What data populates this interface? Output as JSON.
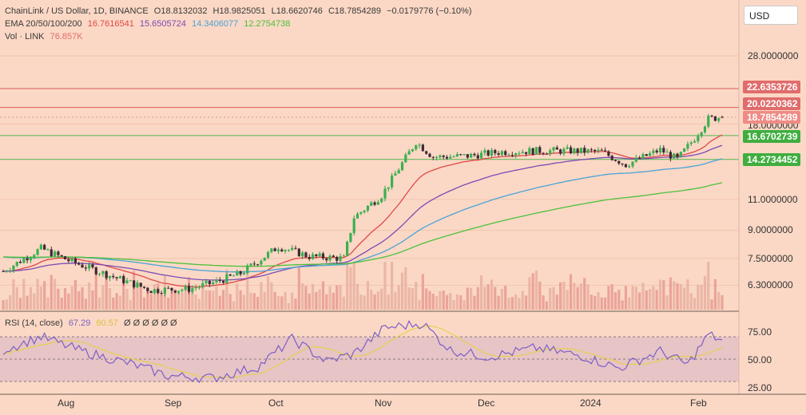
{
  "legend": {
    "symbol_line": "ChainLink / US Dollar, 1D, BINANCE",
    "o": "O18.8132032",
    "h": "H18.9825051",
    "l": "L18.6620746",
    "c": "C18.7854289",
    "chg": "−0.0179776 (−0.10%)",
    "ema_label": "EMA 20/50/100/200",
    "ema20": "16.7616541",
    "ema50": "15.6505724",
    "ema100": "14.3406077",
    "ema200": "12.2754738",
    "vol_label": "Vol · LINK",
    "vol_value": "76.857K",
    "rsi_label": "RSI (14, close)",
    "rsi_value": "67.29",
    "rsi_ma_value": "60.57",
    "rsi_extras": "Ø Ø Ø Ø Ø Ø"
  },
  "currency_button": "USD",
  "price_axis": {
    "ticks": [
      "28.0000000",
      "18.0000000",
      "11.0000000",
      "9.0000000",
      "7.5000000",
      "6.3000000"
    ],
    "badges": [
      {
        "label": "22.6353726",
        "color": "#e06c6c"
      },
      {
        "label": "20.0220362",
        "color": "#e06c6c"
      },
      {
        "label": "18.7854289",
        "color": "#ef8b86"
      },
      {
        "label": "16.6702739",
        "color": "#3fae3f"
      },
      {
        "label": "14.2734452",
        "color": "#3fae3f"
      }
    ]
  },
  "rsi_axis": {
    "ticks": [
      "75.00",
      "50.00",
      "25.00"
    ]
  },
  "x_axis": {
    "ticks": [
      "Aug",
      "Sep",
      "Oct",
      "Nov",
      "Dec",
      "2024",
      "Feb"
    ]
  },
  "colors": {
    "background": "#fbd8c5",
    "up": "#2e9d48",
    "down": "#4a2c3c",
    "ema20": "#e04848",
    "ema50": "#7b4bb5",
    "ema100": "#4aa3d8",
    "ema200": "#4cc13c",
    "resistance": "#d75a5a",
    "support": "#52b552",
    "rsi": "#7c5fc6",
    "rsi_ma": "#e3d14e",
    "volume": "#e9a9a0"
  },
  "chart_data": {
    "type": "candlestick",
    "x_axis_ticks": [
      "Aug",
      "Sep",
      "Oct",
      "Nov",
      "Dec",
      "2024",
      "Feb"
    ],
    "y_scale": "log",
    "horizontal_levels": [
      22.6353726,
      20.0220362,
      16.6702739,
      14.2734452
    ],
    "last_price": 18.7854289,
    "ohlc_last": {
      "open": 18.8132032,
      "high": 18.9825051,
      "low": 18.6620746,
      "close": 18.7854289
    },
    "close_path": {
      "x": [
        "2023-07-13",
        "2023-07-24",
        "2023-08-01",
        "2023-08-15",
        "2023-08-25",
        "2023-09-05",
        "2023-09-12",
        "2023-09-20",
        "2023-10-01",
        "2023-10-10",
        "2023-10-20",
        "2023-10-23",
        "2023-10-31",
        "2023-11-10",
        "2023-11-15",
        "2023-11-25",
        "2023-12-05",
        "2023-12-15",
        "2023-12-25",
        "2024-01-03",
        "2024-01-10",
        "2024-01-20",
        "2024-01-25",
        "2024-01-30",
        "2024-02-03",
        "2024-02-07"
      ],
      "close": [
        6.9,
        8.0,
        7.4,
        6.6,
        6.1,
        6.15,
        6.4,
        6.8,
        8.1,
        7.6,
        7.5,
        9.8,
        11.3,
        16.0,
        14.5,
        14.6,
        15.0,
        15.1,
        15.1,
        15.0,
        13.8,
        15.2,
        14.3,
        16.4,
        18.6,
        18.8
      ]
    },
    "ema": {
      "20": 16.7616541,
      "50": 15.6505724,
      "100": 14.3406077,
      "200": 12.2754738
    },
    "volume_last": "76.857K",
    "rsi": {
      "period": 14,
      "last": 67.29,
      "ma_last": 60.57,
      "levels": [
        70,
        50,
        30
      ],
      "x": [
        "2023-07-13",
        "2023-07-24",
        "2023-08-05",
        "2023-08-20",
        "2023-08-30",
        "2023-09-12",
        "2023-09-25",
        "2023-10-05",
        "2023-10-15",
        "2023-10-23",
        "2023-11-01",
        "2023-11-12",
        "2023-11-20",
        "2023-12-01",
        "2023-12-15",
        "2023-12-28",
        "2024-01-08",
        "2024-01-20",
        "2024-01-28",
        "2024-02-03",
        "2024-02-07"
      ],
      "values": [
        58,
        70,
        57,
        45,
        35,
        33,
        43,
        68,
        48,
        55,
        78,
        82,
        58,
        52,
        60,
        53,
        42,
        57,
        45,
        72,
        67
      ]
    }
  }
}
